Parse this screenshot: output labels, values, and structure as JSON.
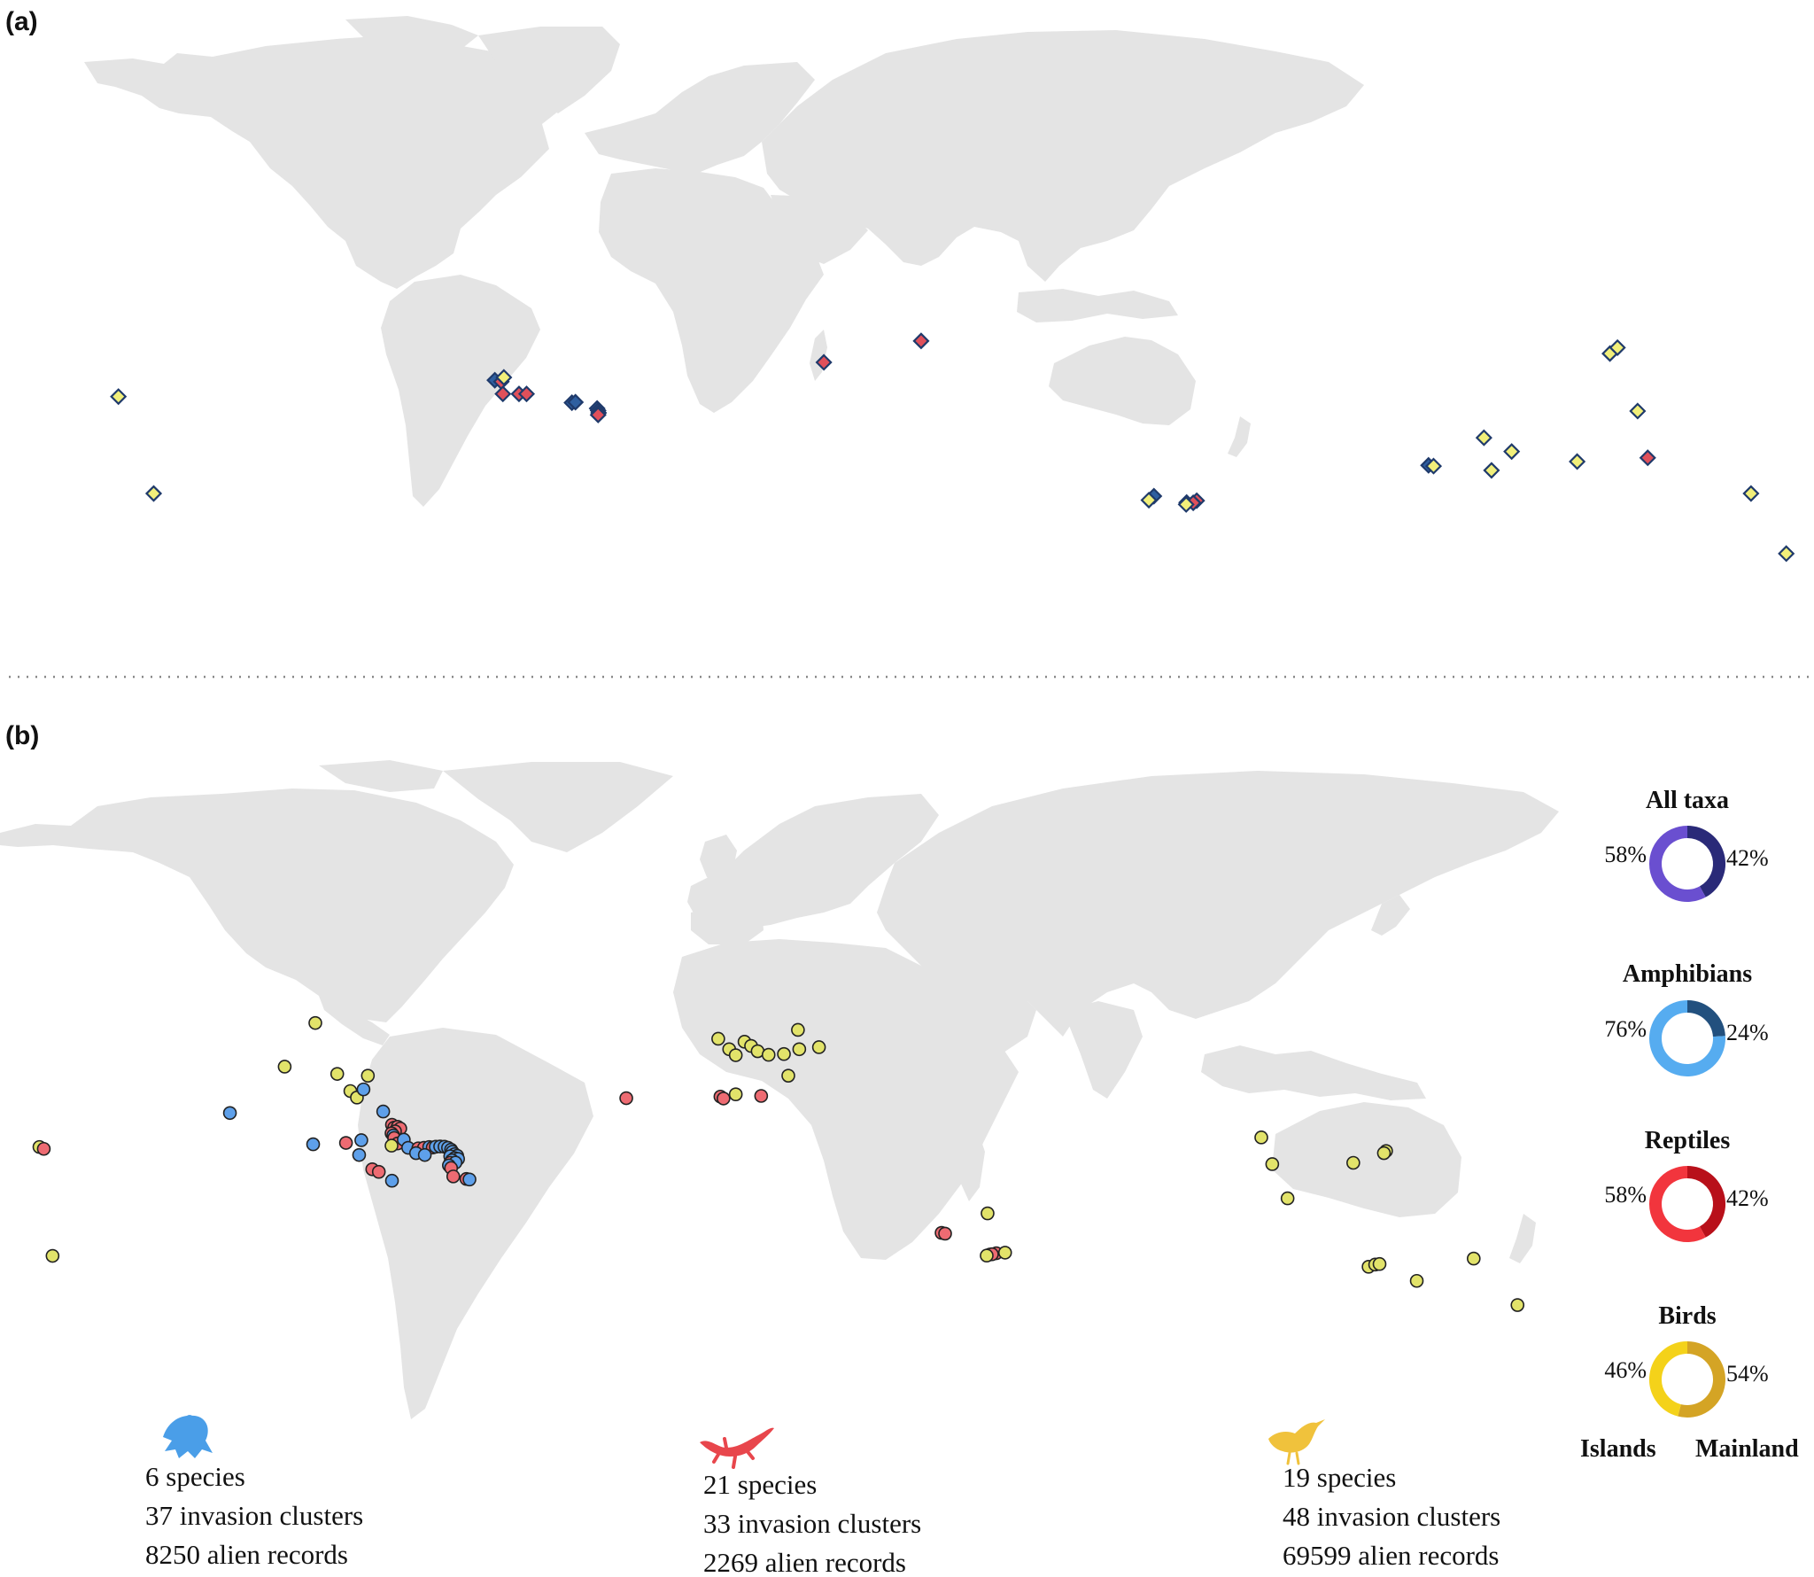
{
  "panels": {
    "a": {
      "label": "(a)"
    },
    "b": {
      "label": "(b)"
    }
  },
  "colors": {
    "land": "#e4e4e4",
    "amphibian": "#5ea0ea",
    "reptile": "#ee6b72",
    "bird": "#e2e36a",
    "amphibian_diamond": "#2f5fa0",
    "reptile_diamond": "#e0505a",
    "bird_diamond": "#f1ef7a",
    "outline": "#1f3a6b"
  },
  "donuts": [
    {
      "title": "All taxa",
      "islands": 58,
      "mainland": 42,
      "islands_label": "58%",
      "mainland_label": "42%",
      "islands_color": "#6a4fd0",
      "mainland_color": "#2a2a78"
    },
    {
      "title": "Amphibians",
      "islands": 76,
      "mainland": 24,
      "islands_label": "76%",
      "mainland_label": "24%",
      "islands_color": "#56acf0",
      "mainland_color": "#22507e"
    },
    {
      "title": "Reptiles",
      "islands": 58,
      "mainland": 42,
      "islands_label": "58%",
      "mainland_label": "42%",
      "islands_color": "#f2353d",
      "mainland_color": "#b8101a"
    },
    {
      "title": "Birds",
      "islands": 46,
      "mainland": 54,
      "islands_label": "46%",
      "mainland_label": "54%",
      "islands_color": "#f4d21a",
      "mainland_color": "#d4a425"
    }
  ],
  "legend": {
    "islands": "Islands",
    "mainland": "Mainland"
  },
  "taxa_stats": [
    {
      "icon": "frog-icon",
      "color": "#4a9ee8",
      "species": "6 species",
      "clusters": "37 invasion clusters",
      "records": "8250 alien records"
    },
    {
      "icon": "lizard-icon",
      "color": "#e8464c",
      "species": "21 species",
      "clusters": "33 invasion clusters",
      "records": "2269 alien records"
    },
    {
      "icon": "bird-icon",
      "color": "#f0c23c",
      "species": "19 species",
      "clusters": "48 invasion clusters",
      "records": "69599 alien records"
    }
  ],
  "map_a_points": [
    {
      "lon": -156.5,
      "lat": 20.5,
      "taxon": "bird"
    },
    {
      "lon": -149.5,
      "lat": -17.5,
      "taxon": "bird"
    },
    {
      "lon": -81.8,
      "lat": 26.5,
      "taxon": "amphibian"
    },
    {
      "lon": -80.5,
      "lat": 26.0,
      "taxon": "reptile"
    },
    {
      "lon": -80.0,
      "lat": 27.5,
      "taxon": "bird"
    },
    {
      "lon": -80.2,
      "lat": 21.5,
      "taxon": "reptile"
    },
    {
      "lon": -77.0,
      "lat": 21.5,
      "taxon": "reptile"
    },
    {
      "lon": -75.5,
      "lat": 21.5,
      "taxon": "reptile"
    },
    {
      "lon": -66.5,
      "lat": 18.2,
      "taxon": "amphibian"
    },
    {
      "lon": -65.8,
      "lat": 18.4,
      "taxon": "amphibian"
    },
    {
      "lon": -61.5,
      "lat": 16.0,
      "taxon": "amphibian"
    },
    {
      "lon": -61.3,
      "lat": 15.2,
      "taxon": "amphibian"
    },
    {
      "lon": -61.2,
      "lat": 14.3,
      "taxon": "reptile"
    },
    {
      "lon": -61.3,
      "lat": 13.5,
      "taxon": "reptile"
    },
    {
      "lon": -16.5,
      "lat": 32.7,
      "taxon": "reptile"
    },
    {
      "lon": 2.8,
      "lat": 39.6,
      "taxon": "reptile"
    },
    {
      "lon": 55.5,
      "lat": -20.9,
      "taxon": "reptile"
    },
    {
      "lon": 57.5,
      "lat": -20.2,
      "taxon": "reptile"
    },
    {
      "lon": 56.8,
      "lat": -21.0,
      "taxon": "reptile"
    },
    {
      "lon": 55.4,
      "lat": -21.6,
      "taxon": "bird"
    },
    {
      "lon": 49.0,
      "lat": -18.5,
      "taxon": "amphibian"
    },
    {
      "lon": 48.0,
      "lat": -20.0,
      "taxon": "bird"
    },
    {
      "lon": 139.5,
      "lat": 35.6,
      "taxon": "bird"
    },
    {
      "lon": 141.0,
      "lat": 37.5,
      "taxon": "bird"
    },
    {
      "lon": 145.0,
      "lat": 15.0,
      "taxon": "bird"
    },
    {
      "lon": 114.5,
      "lat": 4.5,
      "taxon": "bird"
    },
    {
      "lon": 120.0,
      "lat": -1.0,
      "taxon": "bird"
    },
    {
      "lon": 103.5,
      "lat": -6.5,
      "taxon": "amphibian"
    },
    {
      "lon": 104.5,
      "lat": -6.8,
      "taxon": "bird"
    },
    {
      "lon": 116.0,
      "lat": -8.5,
      "taxon": "bird"
    },
    {
      "lon": 133.0,
      "lat": -5.0,
      "taxon": "bird"
    },
    {
      "lon": 147.0,
      "lat": -3.5,
      "taxon": "reptile"
    },
    {
      "lon": 167.5,
      "lat": -17.5,
      "taxon": "bird"
    },
    {
      "lon": 174.5,
      "lat": -38.5,
      "taxon": "bird"
    }
  ],
  "map_b_points": [
    {
      "lon": -161.0,
      "lat": 21.5,
      "taxon": "bird"
    },
    {
      "lon": -160.0,
      "lat": 20.8,
      "taxon": "reptile"
    },
    {
      "lon": -158.0,
      "lat": -21.0,
      "taxon": "bird"
    },
    {
      "lon": -117.5,
      "lat": 33.5,
      "taxon": "amphibian"
    },
    {
      "lon": -105.0,
      "lat": 47.5,
      "taxon": "bird"
    },
    {
      "lon": -98.0,
      "lat": 58.0,
      "taxon": "bird"
    },
    {
      "lon": -93.0,
      "lat": 45.5,
      "taxon": "bird"
    },
    {
      "lon": -90.0,
      "lat": 40.5,
      "taxon": "bird"
    },
    {
      "lon": -88.5,
      "lat": 38.5,
      "taxon": "bird"
    },
    {
      "lon": -87.0,
      "lat": 41.0,
      "taxon": "amphibian"
    },
    {
      "lon": -86.0,
      "lat": 45.0,
      "taxon": "bird"
    },
    {
      "lon": -98.5,
      "lat": 22.5,
      "taxon": "amphibian"
    },
    {
      "lon": -91.0,
      "lat": 23.0,
      "taxon": "reptile"
    },
    {
      "lon": -87.5,
      "lat": 24.0,
      "taxon": "amphibian"
    },
    {
      "lon": -88.0,
      "lat": 18.5,
      "taxon": "amphibian"
    },
    {
      "lon": -85.0,
      "lat": 13.0,
      "taxon": "reptile"
    },
    {
      "lon": -83.5,
      "lat": 12.0,
      "taxon": "reptile"
    },
    {
      "lon": -80.5,
      "lat": 8.5,
      "taxon": "amphibian"
    },
    {
      "lon": -82.5,
      "lat": 34.0,
      "taxon": "amphibian"
    },
    {
      "lon": -80.5,
      "lat": 29.5,
      "taxon": "reptile"
    },
    {
      "lon": -80.0,
      "lat": 28.5,
      "taxon": "reptile"
    },
    {
      "lon": -79.2,
      "lat": 28.8,
      "taxon": "reptile"
    },
    {
      "lon": -78.6,
      "lat": 28.2,
      "taxon": "reptile"
    },
    {
      "lon": -79.8,
      "lat": 27.2,
      "taxon": "reptile"
    },
    {
      "lon": -80.6,
      "lat": 26.5,
      "taxon": "reptile"
    },
    {
      "lon": -80.2,
      "lat": 25.7,
      "taxon": "amphibian"
    },
    {
      "lon": -80.0,
      "lat": 24.8,
      "taxon": "reptile"
    },
    {
      "lon": -79.2,
      "lat": 22.8,
      "taxon": "reptile"
    },
    {
      "lon": -80.6,
      "lat": 22.0,
      "taxon": "bird"
    },
    {
      "lon": -77.8,
      "lat": 24.2,
      "taxon": "amphibian"
    },
    {
      "lon": -76.8,
      "lat": 21.2,
      "taxon": "amphibian"
    },
    {
      "lon": -74.5,
      "lat": 21.0,
      "taxon": "reptile"
    },
    {
      "lon": -73.2,
      "lat": 21.2,
      "taxon": "reptile"
    },
    {
      "lon": -72.0,
      "lat": 21.5,
      "taxon": "amphibian"
    },
    {
      "lon": -71.2,
      "lat": 21.3,
      "taxon": "reptile"
    },
    {
      "lon": -75.0,
      "lat": 19.2,
      "taxon": "amphibian"
    },
    {
      "lon": -73.0,
      "lat": 18.5,
      "taxon": "amphibian"
    },
    {
      "lon": -70.5,
      "lat": 21.6,
      "taxon": "amphibian"
    },
    {
      "lon": -69.5,
      "lat": 21.7,
      "taxon": "amphibian"
    },
    {
      "lon": -68.5,
      "lat": 21.6,
      "taxon": "amphibian"
    },
    {
      "lon": -67.7,
      "lat": 21.2,
      "taxon": "amphibian"
    },
    {
      "lon": -67.0,
      "lat": 20.5,
      "taxon": "amphibian"
    },
    {
      "lon": -66.7,
      "lat": 19.7,
      "taxon": "amphibian"
    },
    {
      "lon": -66.2,
      "lat": 18.8,
      "taxon": "amphibian"
    },
    {
      "lon": -65.6,
      "lat": 18.2,
      "taxon": "amphibian"
    },
    {
      "lon": -67.2,
      "lat": 18.0,
      "taxon": "amphibian"
    },
    {
      "lon": -66.2,
      "lat": 17.3,
      "taxon": "amphibian"
    },
    {
      "lon": -65.4,
      "lat": 17.0,
      "taxon": "amphibian"
    },
    {
      "lon": -66.8,
      "lat": 16.5,
      "taxon": "amphibian"
    },
    {
      "lon": -67.2,
      "lat": 15.5,
      "taxon": "reptile"
    },
    {
      "lon": -66.0,
      "lat": 15.6,
      "taxon": "amphibian"
    },
    {
      "lon": -67.5,
      "lat": 14.5,
      "taxon": "amphibian"
    },
    {
      "lon": -67.0,
      "lat": 13.5,
      "taxon": "reptile"
    },
    {
      "lon": -66.5,
      "lat": 10.2,
      "taxon": "reptile"
    },
    {
      "lon": -63.5,
      "lat": 9.2,
      "taxon": "reptile"
    },
    {
      "lon": -62.8,
      "lat": 9.0,
      "taxon": "amphibian"
    },
    {
      "lon": -6.0,
      "lat": 54.5,
      "taxon": "bird"
    },
    {
      "lon": -3.5,
      "lat": 52.0,
      "taxon": "bird"
    },
    {
      "lon": -2.0,
      "lat": 50.5,
      "taxon": "bird"
    },
    {
      "lon": 0.0,
      "lat": 53.8,
      "taxon": "bird"
    },
    {
      "lon": 1.5,
      "lat": 52.8,
      "taxon": "bird"
    },
    {
      "lon": 3.0,
      "lat": 51.5,
      "taxon": "bird"
    },
    {
      "lon": 5.5,
      "lat": 50.6,
      "taxon": "bird"
    },
    {
      "lon": 9.0,
      "lat": 50.8,
      "taxon": "bird"
    },
    {
      "lon": 12.5,
      "lat": 52.0,
      "taxon": "bird"
    },
    {
      "lon": 17.0,
      "lat": 52.5,
      "taxon": "bird"
    },
    {
      "lon": 12.2,
      "lat": 56.5,
      "taxon": "bird"
    },
    {
      "lon": 10.0,
      "lat": 45.0,
      "taxon": "bird"
    },
    {
      "lon": -27.0,
      "lat": 38.3,
      "taxon": "reptile"
    },
    {
      "lon": -5.5,
      "lat": 38.8,
      "taxon": "reptile"
    },
    {
      "lon": -4.8,
      "lat": 38.2,
      "taxon": "reptile"
    },
    {
      "lon": -2.0,
      "lat": 39.5,
      "taxon": "bird"
    },
    {
      "lon": 3.8,
      "lat": 39.0,
      "taxon": "reptile"
    },
    {
      "lon": 118.0,
      "lat": 25.0,
      "taxon": "bird"
    },
    {
      "lon": 120.5,
      "lat": 15.0,
      "taxon": "bird"
    },
    {
      "lon": 139.0,
      "lat": 15.5,
      "taxon": "bird"
    },
    {
      "lon": 146.5,
      "lat": 20.0,
      "taxon": "bird"
    },
    {
      "lon": 146.0,
      "lat": 19.2,
      "taxon": "bird"
    },
    {
      "lon": 124.0,
      "lat": 1.5,
      "taxon": "bird"
    },
    {
      "lon": 45.0,
      "lat": -12.2,
      "taxon": "reptile"
    },
    {
      "lon": 45.8,
      "lat": -12.5,
      "taxon": "reptile"
    },
    {
      "lon": 55.5,
      "lat": -4.5,
      "taxon": "bird"
    },
    {
      "lon": 56.0,
      "lat": -20.5,
      "taxon": "bird"
    },
    {
      "lon": 57.5,
      "lat": -20.0,
      "taxon": "reptile"
    },
    {
      "lon": 56.5,
      "lat": -20.4,
      "taxon": "reptile"
    },
    {
      "lon": 59.5,
      "lat": -19.8,
      "taxon": "bird"
    },
    {
      "lon": 55.3,
      "lat": -20.9,
      "taxon": "bird"
    },
    {
      "lon": 142.5,
      "lat": -25.0,
      "taxon": "bird"
    },
    {
      "lon": 144.0,
      "lat": -24.2,
      "taxon": "bird"
    },
    {
      "lon": 145.0,
      "lat": -24.0,
      "taxon": "bird"
    },
    {
      "lon": 153.5,
      "lat": -30.0,
      "taxon": "bird"
    },
    {
      "lon": 166.5,
      "lat": -22.0,
      "taxon": "bird"
    },
    {
      "lon": 176.5,
      "lat": -38.0,
      "taxon": "bird"
    }
  ]
}
